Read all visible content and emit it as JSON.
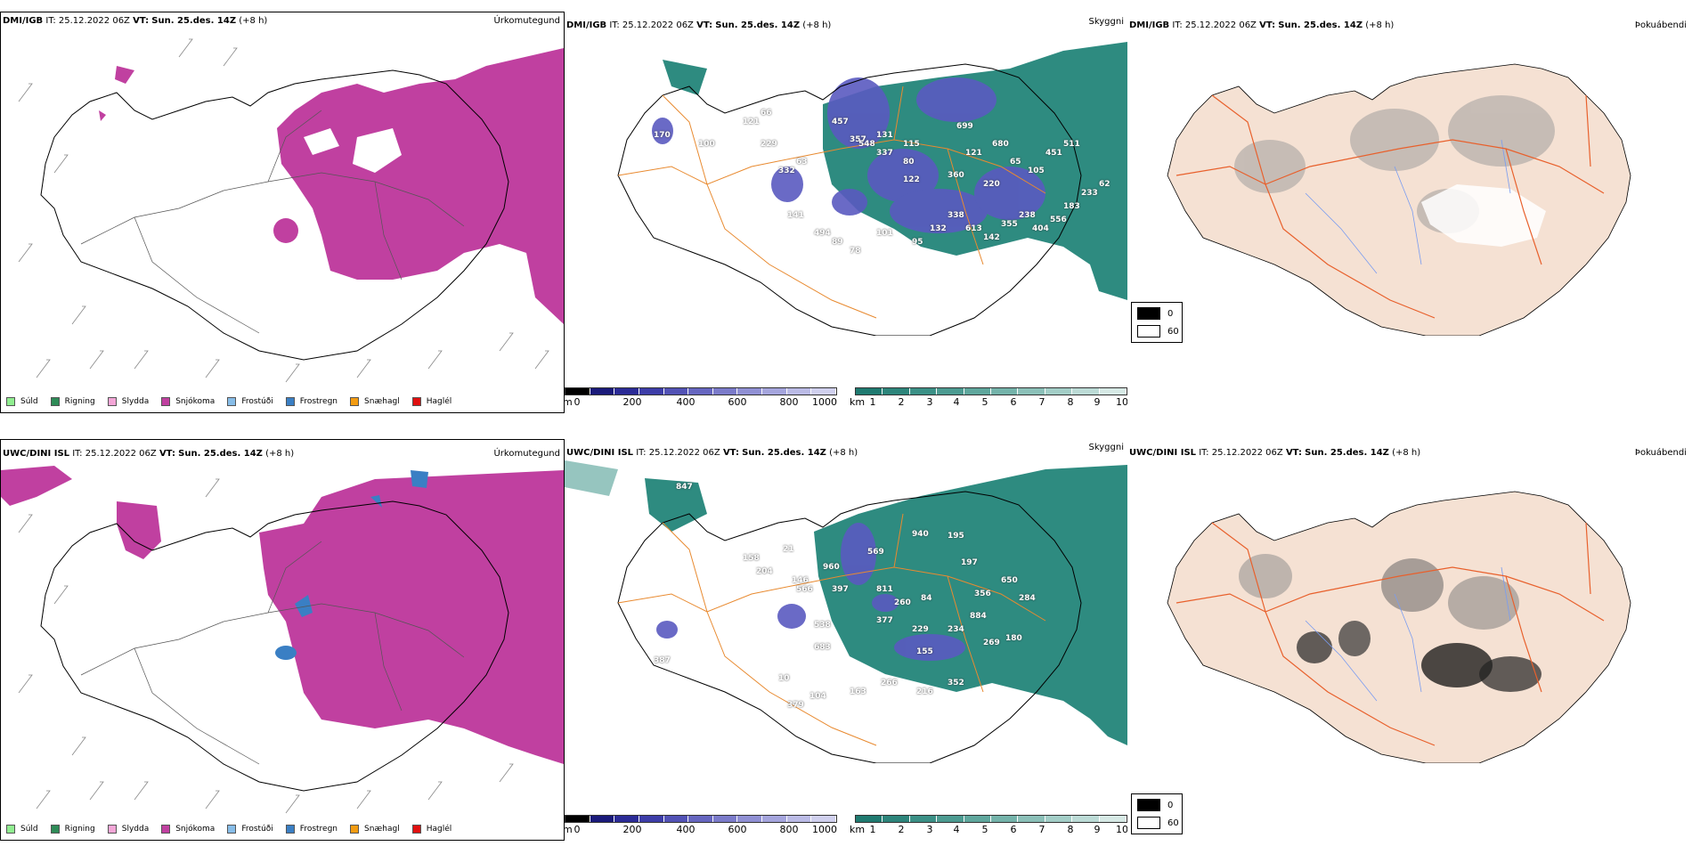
{
  "rows": [
    {
      "model": "DMI/IGB",
      "it_label": "IT:",
      "it_value": "25.12.2022 06Z",
      "vt_label": "VT:",
      "vt_value": "Sun. 25.des. 14Z",
      "lead": "(+8 h)",
      "panels": {
        "precip": {
          "title": "Úrkomutegund"
        },
        "cloudbase": {
          "title": "Skyggni"
        },
        "fog": {
          "title": "Þokuábendi"
        }
      },
      "cloud_labels": [
        "170",
        "100",
        "121",
        "66",
        "229",
        "457",
        "357",
        "63",
        "548",
        "337",
        "80",
        "131",
        "115",
        "699",
        "121",
        "122",
        "360",
        "220",
        "680",
        "65",
        "105",
        "451",
        "511",
        "332",
        "141",
        "494",
        "89",
        "78",
        "101",
        "95",
        "132",
        "338",
        "613",
        "142",
        "355",
        "238",
        "404",
        "556",
        "183",
        "233",
        "62"
      ]
    },
    {
      "model": "UWC/DINI ISL",
      "it_label": "IT:",
      "it_value": "25.12.2022 06Z",
      "vt_label": "VT:",
      "vt_value": "Sun. 25.des. 14Z",
      "lead": "(+8 h)",
      "panels": {
        "precip": {
          "title": "Úrkomutegund"
        },
        "cloudbase": {
          "title": "Skyggni"
        },
        "fog": {
          "title": "Þokuábendi"
        }
      },
      "cloud_labels": [
        "847",
        "158",
        "21",
        "204",
        "146",
        "960",
        "569",
        "940",
        "195",
        "197",
        "566",
        "397",
        "811",
        "260",
        "84",
        "356",
        "650",
        "284",
        "538",
        "377",
        "229",
        "234",
        "884",
        "683",
        "155",
        "269",
        "180",
        "10",
        "379",
        "104",
        "163",
        "266",
        "216",
        "352",
        "387"
      ]
    }
  ],
  "precip_legend": [
    {
      "label": "Súld",
      "color": "#90ee90"
    },
    {
      "label": "Rigning",
      "color": "#2e8b57"
    },
    {
      "label": "Slydda",
      "color": "#f4a6d7"
    },
    {
      "label": "Snjókoma",
      "color": "#c040a0"
    },
    {
      "label": "Frostúði",
      "color": "#87bde8"
    },
    {
      "label": "Frostregn",
      "color": "#3a7fc4"
    },
    {
      "label": "Snæhagl",
      "color": "#f39c12"
    },
    {
      "label": "Haglél",
      "color": "#e01010"
    }
  ],
  "cloud_bar": {
    "unit": "m",
    "ticks": [
      "0",
      "200",
      "400",
      "600",
      "800",
      "1000"
    ],
    "colors": [
      "#000000",
      "#1a1a7a",
      "#2b2b96",
      "#3d3da8",
      "#5252b5",
      "#6666c0",
      "#7b7bca",
      "#9090d4",
      "#a5a5dd",
      "#bbbbe6",
      "#d0d0ee"
    ]
  },
  "vis_bar": {
    "unit": "km",
    "ticks": [
      "1",
      "2",
      "3",
      "4",
      "5",
      "6",
      "7",
      "8",
      "9",
      "10"
    ],
    "colors": [
      "#1f7a70",
      "#2d857b",
      "#3b9086",
      "#4c9b91",
      "#5fa79d",
      "#74b3aa",
      "#8bc0b8",
      "#a3cec7",
      "#bcdbd6",
      "#d6e9e5"
    ]
  },
  "fog_key": [
    {
      "label": "0",
      "color": "#000000"
    },
    {
      "label": "60",
      "color": "#ffffff"
    }
  ],
  "colors": {
    "snow": "#c040a0",
    "freezing_rain": "#3a7fc4",
    "teal": "#2e8b80",
    "land": "#f5e1d3",
    "road": "#e8602c",
    "river": "#7a9cf0",
    "road_orange": "#e88a30"
  }
}
